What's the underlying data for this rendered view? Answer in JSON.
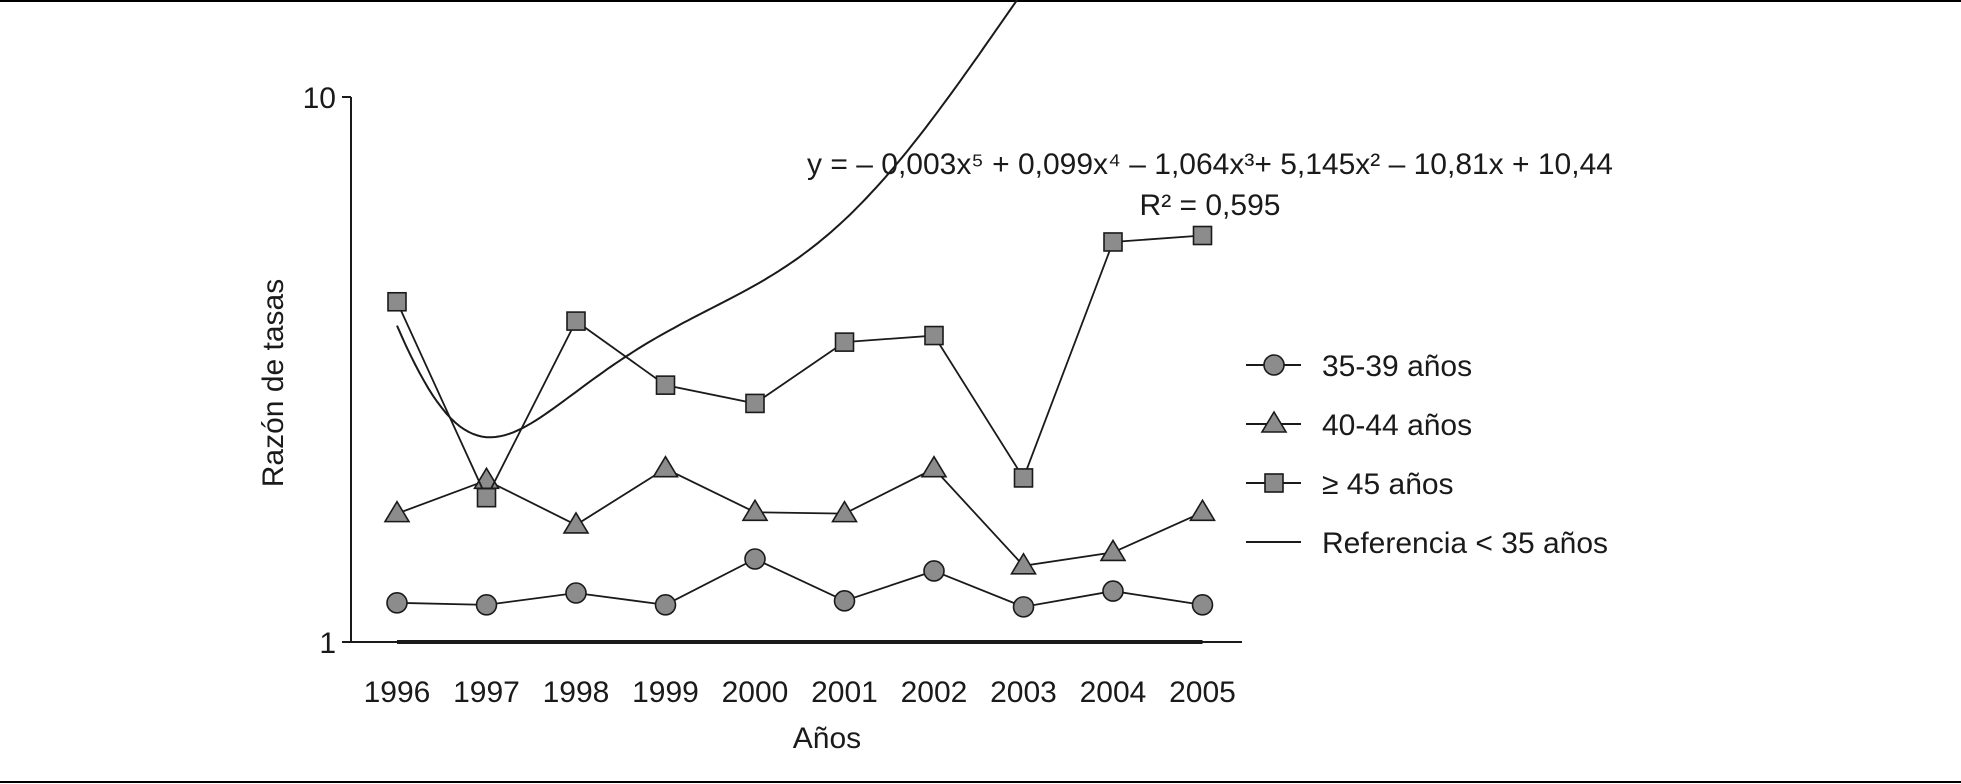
{
  "chart_data": {
    "type": "line",
    "ylabel": "Razón de tasas",
    "xlabel": "Años",
    "y_scale": "log",
    "ylim": [
      1,
      10
    ],
    "y_ticks": [
      "1",
      "10"
    ],
    "categories": [
      "1996",
      "1997",
      "1998",
      "1999",
      "2000",
      "2001",
      "2002",
      "2003",
      "2004",
      "2005"
    ],
    "series": [
      {
        "name": "35-39 años",
        "marker": "circle",
        "values": [
          1.18,
          1.17,
          1.23,
          1.17,
          1.42,
          1.19,
          1.35,
          1.16,
          1.24,
          1.17
        ]
      },
      {
        "name": "40-44 años",
        "marker": "triangle",
        "values": [
          1.72,
          1.98,
          1.64,
          2.08,
          1.73,
          1.72,
          2.08,
          1.38,
          1.46,
          1.73
        ]
      },
      {
        "name": "≥ 45 años",
        "marker": "square",
        "values": [
          4.21,
          1.84,
          3.88,
          2.96,
          2.74,
          3.55,
          3.65,
          2.0,
          5.42,
          5.57
        ]
      },
      {
        "name": "Referencia < 35 años",
        "marker": "none",
        "values": [
          1,
          1,
          1,
          1,
          1,
          1,
          1,
          1,
          1,
          1
        ]
      }
    ],
    "trendline": {
      "of_series": "≥ 45 años",
      "type": "polynomial",
      "order": 5,
      "equation": "y = – 0,003x⁵ + 0,099x⁴ – 1,064x³+ 5,145x² – 10,81x + 10,44",
      "r2_text": "R² = 0,595",
      "coefficients": [
        -0.003,
        0.099,
        -1.064,
        5.145,
        -10.81,
        10.44
      ]
    },
    "legend_position": "right",
    "grid": false
  },
  "colors": {
    "marker_fill": "#8c8c8c",
    "line": "#1a1a1a",
    "text": "#1a1a1a",
    "frame": "#000000"
  }
}
